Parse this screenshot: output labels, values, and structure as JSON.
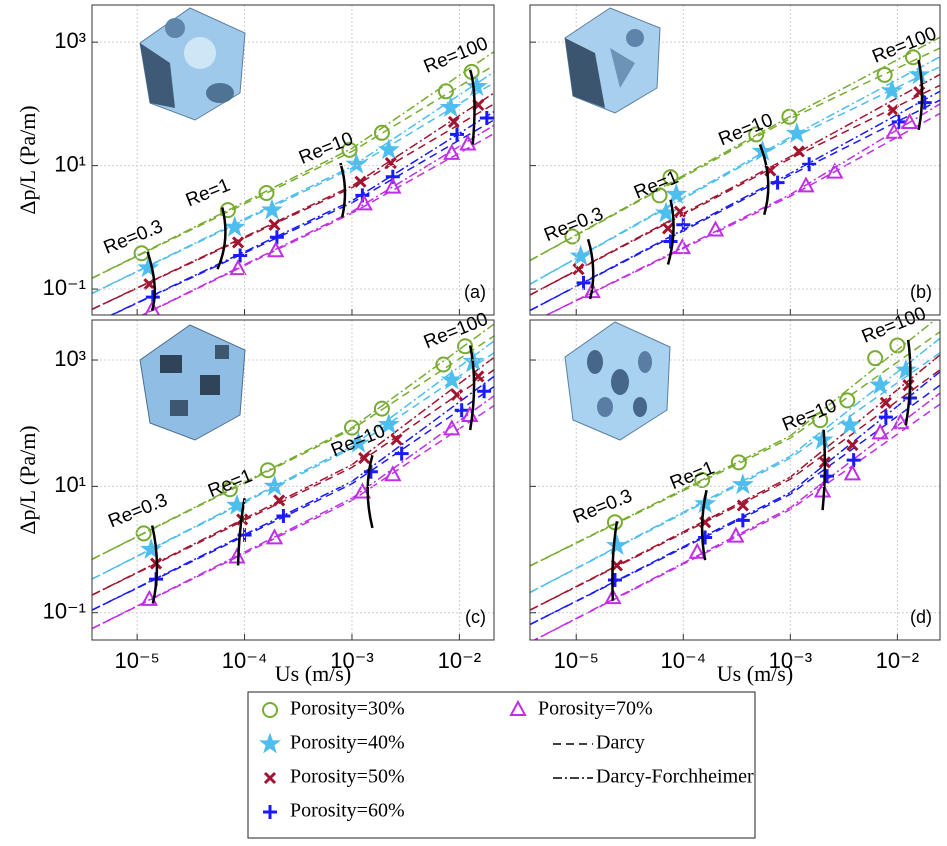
{
  "chart_data": [
    {
      "type": "scatter",
      "label": "(a)",
      "xlim": [
        3.8e-06,
        0.021
      ],
      "ylim": [
        0.038,
        4000
      ],
      "log_x": true,
      "log_y": true,
      "grid": true,
      "xticks": [
        1e-05,
        0.0001,
        0.001,
        0.01
      ],
      "yticks": [
        {
          "value": 0.1,
          "label": "10⁻¹"
        },
        {
          "value": 10,
          "label": "10¹"
        },
        {
          "value": 1000,
          "label": "10³"
        }
      ],
      "line_x": [
        3.8e-06,
        0.001,
        0.021
      ],
      "series": [
        {
          "x": [
            1.1e-05,
            7e-05,
            0.00016,
            0.00095,
            0.0019,
            0.0075,
            0.013
          ],
          "values": [
            0.38,
            1.9,
            3.6,
            18,
            34,
            160,
            330
          ],
          "df_values": [
            0.15,
            19,
            700
          ],
          "darcy_values": [
            0.15,
            17,
            420
          ]
        },
        {
          "x": [
            1.27e-05,
            8.1e-05,
            0.00018,
            0.0011,
            0.0022,
            0.0083,
            0.0145
          ],
          "values": [
            0.22,
            1.0,
            1.9,
            10.5,
            18,
            87,
            190
          ],
          "df_values": [
            0.085,
            9.7,
            330
          ],
          "darcy_values": [
            0.085,
            9,
            220
          ]
        },
        {
          "x": [
            1.3e-05,
            8.7e-05,
            0.00019,
            0.0012,
            0.0023,
            0.0089,
            0.015
          ],
          "values": [
            0.12,
            0.57,
            1.1,
            5.5,
            11,
            51,
            96
          ],
          "df_values": [
            0.047,
            4.7,
            150
          ],
          "darcy_values": [
            0.047,
            4.4,
            100
          ]
        },
        {
          "x": [
            1.4e-05,
            9.1e-05,
            0.0002,
            0.00125,
            0.0024,
            0.0095,
            0.018
          ],
          "values": [
            0.074,
            0.35,
            0.69,
            3.3,
            6.6,
            32,
            59
          ],
          "df_values": [
            0.027,
            2.7,
            75
          ],
          "darcy_values": [
            0.027,
            2.5,
            55
          ]
        },
        {
          "x": [
            1.38e-05,
            8.7e-05,
            0.000195,
            0.0013,
            0.0024,
            0.0085,
            0.012
          ],
          "values": [
            0.045,
            0.21,
            0.41,
            2.35,
            4.4,
            15.5,
            22
          ],
          "df_values": [
            0.015,
            1.8,
            45
          ],
          "darcy_values": [
            0.015,
            1.7,
            33
          ]
        }
      ],
      "re_lines": [
        {
          "label": "Re=0.3",
          "x": [
            1.25e-05,
            1.45e-05,
            1.38e-05
          ],
          "values": [
            0.4,
            0.12,
            0.045
          ]
        },
        {
          "label": "Re=1",
          "x": [
            6.2e-05,
            6.6e-05,
            5.6e-05
          ],
          "values": [
            2.1,
            0.65,
            0.21
          ]
        },
        {
          "label": "Re=10",
          "x": [
            0.00078,
            0.00086,
            0.00081
          ],
          "values": [
            11,
            4.1,
            1.45
          ]
        },
        {
          "label": "Re=100",
          "x": [
            0.0126,
            0.0138,
            0.0133
          ],
          "values": [
            355,
            115,
            22
          ]
        }
      ]
    },
    {
      "type": "scatter",
      "label": "(b)",
      "xlim": [
        3.7e-06,
        0.025
      ],
      "ylim": [
        0.038,
        4000
      ],
      "log_x": true,
      "log_y": true,
      "grid": true,
      "xticks": [
        1e-05,
        0.0001,
        0.001,
        0.01
      ],
      "yticks": [
        0.1,
        10,
        1000
      ],
      "line_x": [
        3.7e-06,
        0.001,
        0.025
      ],
      "series": [
        {
          "x": [
            9.2e-06,
            6e-05,
            7.6e-05,
            0.00048,
            0.00098,
            0.0076,
            0.014
          ],
          "values": [
            0.71,
            3.3,
            6.5,
            32,
            62,
            295,
            570
          ],
          "df_values": [
            0.29,
            63,
            1200
          ],
          "darcy_values": [
            0.29,
            58,
            800
          ]
        },
        {
          "x": [
            1.1e-05,
            6.9e-05,
            8.6e-05,
            0.00055,
            0.00115,
            0.0089,
            0.016
          ],
          "values": [
            0.34,
            1.7,
            3.4,
            17,
            33,
            162,
            295
          ],
          "df_values": [
            0.12,
            29,
            580
          ],
          "darcy_values": [
            0.12,
            27,
            400
          ]
        },
        {
          "x": [
            1.05e-05,
            7.2e-05,
            9.3e-05,
            0.00065,
            0.0012,
            0.0091,
            0.016
          ],
          "values": [
            0.21,
            0.96,
            1.8,
            8.3,
            17,
            79,
            155
          ],
          "df_values": [
            0.08,
            14,
            300
          ],
          "darcy_values": [
            0.08,
            13,
            200
          ]
        },
        {
          "x": [
            1.17e-05,
            7.6e-05,
            0.0001,
            0.00076,
            0.0015,
            0.0103,
            0.018
          ],
          "values": [
            0.126,
            0.59,
            1.1,
            5.3,
            10.5,
            51,
            105
          ],
          "df_values": [
            0.045,
            7.5,
            160
          ],
          "darcy_values": [
            0.045,
            7,
            115
          ]
        },
        {
          "x": [
            1.41e-05,
            9.8e-05,
            0.0002,
            0.0014,
            0.0026,
            0.0093,
            0.013
          ],
          "values": [
            0.089,
            0.46,
            0.89,
            4.6,
            7.7,
            34,
            49
          ],
          "df_values": [
            0.028,
            3.4,
            100
          ],
          "darcy_values": [
            0.028,
            3.2,
            70
          ]
        }
      ],
      "re_lines": [
        {
          "label": "Re=0.3",
          "x": [
            1.29e-05,
            1.44e-05,
            1.35e-05
          ],
          "values": [
            0.64,
            0.21,
            0.069
          ]
        },
        {
          "label": "Re=1",
          "x": [
            7.6e-05,
            8.1e-05,
            7.2e-05
          ],
          "values": [
            2.8,
            0.87,
            0.25
          ]
        },
        {
          "label": "Re=10",
          "x": [
            0.00052,
            0.00062,
            0.00057
          ],
          "values": [
            22,
            5.9,
            1.6
          ]
        },
        {
          "label": "Re=100",
          "x": [
            0.0158,
            0.017,
            0.0158
          ],
          "values": [
            515,
            140,
            38
          ]
        }
      ]
    },
    {
      "type": "scatter",
      "label": "(c)",
      "xlim": [
        3.8e-06,
        0.021
      ],
      "ylim": [
        0.037,
        4300
      ],
      "log_x": true,
      "log_y": true,
      "grid": true,
      "xticks": [
        {
          "value": 1e-05,
          "label": "10⁻⁵"
        },
        {
          "value": 0.0001,
          "label": "10⁻⁴"
        },
        {
          "value": 0.001,
          "label": "10⁻³"
        },
        {
          "value": 0.01,
          "label": "10⁻²"
        }
      ],
      "yticks": [
        {
          "value": 0.1,
          "label": "10⁻¹"
        },
        {
          "value": 10,
          "label": "10¹"
        },
        {
          "value": 1000,
          "label": "10³"
        }
      ],
      "line_x": [
        3.8e-06,
        0.001,
        0.021
      ],
      "series": [
        {
          "x": [
            1.15e-05,
            7.3e-05,
            0.000165,
            0.001,
            0.0019,
            0.0071,
            0.0113
          ],
          "values": [
            1.8,
            9,
            18,
            85,
            170,
            850,
            1650
          ],
          "df_values": [
            0.7,
            85,
            3700
          ],
          "darcy_values": [
            0.7,
            80,
            2400
          ]
        },
        {
          "x": [
            1.35e-05,
            8.5e-05,
            0.00019,
            0.00115,
            0.0022,
            0.0085,
            0.0135
          ],
          "values": [
            1.0,
            5,
            10,
            48,
            95,
            480,
            950
          ],
          "df_values": [
            0.34,
            43,
            2000
          ],
          "darcy_values": [
            0.34,
            40,
            1300
          ]
        },
        {
          "x": [
            1.5e-05,
            9.5e-05,
            0.00021,
            0.0013,
            0.0026,
            0.0095,
            0.015
          ],
          "values": [
            0.6,
            3,
            6,
            28,
            55,
            280,
            550
          ],
          "df_values": [
            0.19,
            22,
            1100
          ],
          "darcy_values": [
            0.19,
            20,
            700
          ]
        },
        {
          "x": [
            1.5e-05,
            0.0001,
            0.00023,
            0.0015,
            0.0029,
            0.0105,
            0.017
          ],
          "values": [
            0.34,
            1.7,
            3.4,
            17,
            33,
            160,
            320
          ],
          "df_values": [
            0.11,
            12,
            550
          ],
          "darcy_values": [
            0.11,
            11,
            380
          ]
        },
        {
          "x": [
            1.3e-05,
            8.5e-05,
            0.00019,
            0.00125,
            0.0024,
            0.0085,
            0.0125
          ],
          "values": [
            0.16,
            0.75,
            1.5,
            8,
            15,
            80,
            130
          ],
          "df_values": [
            0.056,
            6.5,
            270
          ],
          "darcy_values": [
            0.056,
            6,
            190
          ]
        }
      ],
      "re_lines": [
        {
          "label": "Re=0.3",
          "x": [
            1.38e-05,
            1.53e-05,
            1.4e-05
          ],
          "values": [
            2.4,
            0.56,
            0.14
          ]
        },
        {
          "label": "Re=1",
          "x": [
            0.0001,
            9.1e-05,
            8.7e-05
          ],
          "values": [
            6.5,
            2.0,
            0.56
          ]
        },
        {
          "label": "Re=10",
          "x": [
            0.00155,
            0.0014,
            0.00155
          ],
          "values": [
            31,
            8.7,
            2.2
          ]
        },
        {
          "label": "Re=100",
          "x": [
            0.0126,
            0.0137,
            0.0126
          ],
          "values": [
            1700,
            400,
            78
          ]
        }
      ]
    },
    {
      "type": "scatter",
      "label": "(d)",
      "xlim": [
        3.7e-06,
        0.025
      ],
      "ylim": [
        0.037,
        4300
      ],
      "log_x": true,
      "log_y": true,
      "grid": true,
      "xticks": [
        {
          "value": 1e-05,
          "label": "10⁻⁵"
        },
        {
          "value": 0.0001,
          "label": "10⁻⁴"
        },
        {
          "value": 0.001,
          "label": "10⁻³"
        },
        {
          "value": 0.01,
          "label": "10⁻²"
        }
      ],
      "yticks": [
        0.1,
        10,
        1000
      ],
      "line_x": [
        3.7e-06,
        0.001,
        0.025
      ],
      "series": [
        {
          "x": [
            2.3e-05,
            0.00015,
            0.00033,
            0.0019,
            0.0034,
            0.0062,
            0.01
          ],
          "values": [
            2.7,
            12.6,
            24,
            112,
            230,
            1070,
            1700
          ],
          "df_values": [
            0.55,
            63,
            5000
          ],
          "darcy_values": [
            0.55,
            58,
            2800
          ]
        },
        {
          "x": [
            2.4e-05,
            0.00016,
            0.00036,
            0.002,
            0.0036,
            0.0069,
            0.012
          ],
          "values": [
            1.15,
            5.3,
            10.6,
            54,
            93,
            400,
            690
          ],
          "df_values": [
            0.21,
            30,
            2200
          ],
          "darcy_values": [
            0.21,
            28,
            1300
          ]
        },
        {
          "x": [
            2.4e-05,
            0.00016,
            0.00036,
            0.0021,
            0.0038,
            0.0078,
            0.0127
          ],
          "values": [
            0.56,
            2.7,
            5.0,
            24,
            45,
            210,
            400
          ],
          "df_values": [
            0.11,
            14,
            1200
          ],
          "darcy_values": [
            0.11,
            13,
            700
          ]
        },
        {
          "x": [
            2.3e-05,
            0.00016,
            0.00036,
            0.0022,
            0.0039,
            0.0078,
            0.0131
          ],
          "values": [
            0.33,
            1.55,
            2.9,
            14.5,
            26,
            125,
            250
          ],
          "df_values": [
            0.065,
            8,
            650
          ],
          "darcy_values": [
            0.065,
            7.5,
            400
          ]
        },
        {
          "x": [
            2.2e-05,
            0.000135,
            0.00031,
            0.002,
            0.0038,
            0.0069,
            0.0107
          ],
          "values": [
            0.17,
            0.89,
            1.6,
            8.3,
            15.5,
            69,
            100
          ],
          "df_values": [
            0.034,
            4.6,
            300
          ],
          "darcy_values": [
            0.034,
            4.3,
            200
          ]
        }
      ],
      "re_lines": [
        {
          "label": "Re=0.3",
          "x": [
            2.4e-05,
            2.2e-05,
            2.2e-05
          ],
          "values": [
            2.8,
            0.68,
            0.155
          ]
        },
        {
          "label": "Re=1",
          "x": [
            0.000165,
            0.00015,
            0.00016
          ],
          "values": [
            8.7,
            2.4,
            0.68
          ]
        },
        {
          "label": "Re=10",
          "x": [
            0.00205,
            0.0021,
            0.002
          ],
          "values": [
            78,
            18,
            4.2
          ]
        },
        {
          "label": "Re=100",
          "x": [
            0.0126,
            0.0132,
            0.012
          ],
          "values": [
            2080,
            480,
            93
          ]
        }
      ]
    }
  ],
  "axis_labels": {
    "x": "Us (m/s)",
    "y": "Δp/L (Pa/m)"
  },
  "legend": {
    "series": [
      {
        "name": "Porosity=30%",
        "color": "#77ac30",
        "marker": "circle"
      },
      {
        "name": "Porosity=40%",
        "color": "#4dbeee",
        "marker": "star"
      },
      {
        "name": "Porosity=50%",
        "color": "#a2142f",
        "marker": "x"
      },
      {
        "name": "Porosity=60%",
        "color": "#1a1aff",
        "marker": "plus"
      },
      {
        "name": "Porosity=70%",
        "color": "#c12ee8",
        "marker": "triangle"
      }
    ],
    "lines": [
      {
        "name": "Darcy",
        "dash": "darcy"
      },
      {
        "name": "Darcy-Forchheimer",
        "dash": "df"
      }
    ]
  }
}
